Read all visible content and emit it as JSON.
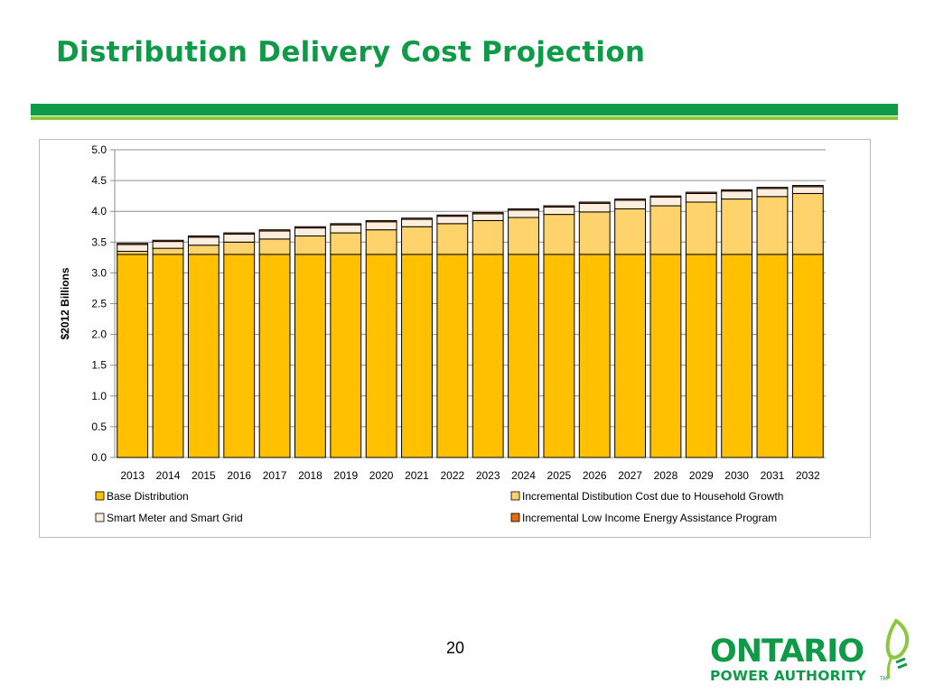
{
  "slide": {
    "title": "Distribution Delivery Cost Projection",
    "page_number": "20"
  },
  "logo": {
    "line1": "ONTARIO",
    "line2": "POWER AUTHORITY",
    "tm": "TM",
    "icon": "leaf-plug-icon"
  },
  "colors": {
    "title_green": "#0f9a48",
    "accent_light_green": "#8dc63f",
    "base_distribution": "#ffc000",
    "household_growth": "#ffd36b",
    "smart_meter": "#ffeedd",
    "low_income": "#e46c0a"
  },
  "chart_data": {
    "type": "bar",
    "stacked": true,
    "categories": [
      "2013",
      "2014",
      "2015",
      "2016",
      "2017",
      "2018",
      "2019",
      "2020",
      "2021",
      "2022",
      "2023",
      "2024",
      "2025",
      "2026",
      "2027",
      "2028",
      "2029",
      "2030",
      "2031",
      "2032"
    ],
    "series": [
      {
        "name": "Base Distribution",
        "color": "#ffc000",
        "values": [
          3.3,
          3.3,
          3.3,
          3.3,
          3.3,
          3.3,
          3.3,
          3.3,
          3.3,
          3.3,
          3.3,
          3.3,
          3.3,
          3.3,
          3.3,
          3.3,
          3.3,
          3.3,
          3.3,
          3.3
        ]
      },
      {
        "name": "Incremental Distibution Cost due to Household Growth",
        "color": "#ffd36b",
        "values": [
          0.05,
          0.1,
          0.15,
          0.2,
          0.25,
          0.3,
          0.35,
          0.4,
          0.45,
          0.5,
          0.55,
          0.6,
          0.65,
          0.69,
          0.74,
          0.79,
          0.85,
          0.9,
          0.94,
          0.99
        ]
      },
      {
        "name": "Smart Meter and Smart Grid",
        "color": "#ffeedd",
        "values": [
          0.11,
          0.11,
          0.13,
          0.13,
          0.13,
          0.13,
          0.13,
          0.13,
          0.12,
          0.12,
          0.11,
          0.12,
          0.12,
          0.14,
          0.14,
          0.14,
          0.14,
          0.13,
          0.13,
          0.11
        ]
      },
      {
        "name": "Incremental Low Income Energy Assistance Program",
        "color": "#e46c0a",
        "values": [
          0.02,
          0.02,
          0.02,
          0.02,
          0.02,
          0.02,
          0.02,
          0.02,
          0.02,
          0.02,
          0.02,
          0.02,
          0.02,
          0.02,
          0.02,
          0.02,
          0.02,
          0.02,
          0.02,
          0.02
        ]
      }
    ],
    "ylabel": "$2012 Billions",
    "xlabel": "",
    "ylim": [
      0,
      5.0
    ],
    "yticks": [
      "0.0",
      "0.5",
      "1.0",
      "1.5",
      "2.0",
      "2.5",
      "3.0",
      "3.5",
      "4.0",
      "4.5",
      "5.0"
    ],
    "grid": true,
    "legend_position": "bottom"
  }
}
